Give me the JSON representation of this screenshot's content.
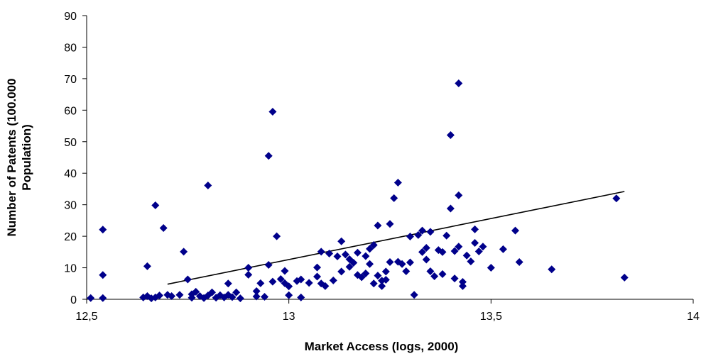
{
  "chart_data": {
    "type": "scatter",
    "xlabel": "Market Access (logs, 2000)",
    "ylabel_lines": [
      "Number of Patents (100.000",
      "Population)"
    ],
    "xlim": [
      12.5,
      14
    ],
    "ylim": [
      0,
      90
    ],
    "x_ticks": [
      12.5,
      13,
      13.5,
      14
    ],
    "x_tick_labels": [
      "12,5",
      "13",
      "13,5",
      "14"
    ],
    "y_ticks": [
      0,
      10,
      20,
      30,
      40,
      50,
      60,
      70,
      80,
      90
    ],
    "y_tick_labels": [
      "0",
      "10",
      "20",
      "30",
      "40",
      "50",
      "60",
      "70",
      "80",
      "90"
    ],
    "grid": false,
    "marker_color": "#00008B",
    "trendline": {
      "x": [
        12.7,
        13.83
      ],
      "y": [
        4.8,
        34.2
      ]
    },
    "points": [
      [
        12.51,
        0.4
      ],
      [
        12.54,
        22.1
      ],
      [
        12.54,
        7.7
      ],
      [
        12.54,
        0.4
      ],
      [
        12.64,
        0.6
      ],
      [
        12.65,
        1.0
      ],
      [
        12.65,
        10.5
      ],
      [
        12.66,
        0.3
      ],
      [
        12.67,
        0.6
      ],
      [
        12.67,
        29.8
      ],
      [
        12.68,
        1.2
      ],
      [
        12.69,
        22.6
      ],
      [
        12.7,
        1.4
      ],
      [
        12.71,
        1.0
      ],
      [
        12.73,
        1.4
      ],
      [
        12.74,
        15.1
      ],
      [
        12.75,
        6.3
      ],
      [
        12.76,
        0.5
      ],
      [
        12.76,
        1.6
      ],
      [
        12.77,
        2.4
      ],
      [
        12.78,
        1.0
      ],
      [
        12.79,
        0.4
      ],
      [
        12.8,
        36.1
      ],
      [
        12.8,
        1.2
      ],
      [
        12.81,
        2.2
      ],
      [
        12.82,
        0.5
      ],
      [
        12.83,
        1.3
      ],
      [
        12.84,
        0.6
      ],
      [
        12.85,
        1.4
      ],
      [
        12.85,
        5.0
      ],
      [
        12.86,
        0.7
      ],
      [
        12.87,
        2.2
      ],
      [
        12.88,
        0.3
      ],
      [
        12.9,
        7.8
      ],
      [
        12.9,
        10.0
      ],
      [
        12.92,
        0.9
      ],
      [
        12.92,
        2.6
      ],
      [
        12.93,
        5.1
      ],
      [
        12.94,
        0.8
      ],
      [
        12.95,
        10.9
      ],
      [
        12.95,
        45.5
      ],
      [
        12.96,
        59.5
      ],
      [
        12.96,
        5.6
      ],
      [
        12.97,
        20.0
      ],
      [
        12.98,
        6.4
      ],
      [
        12.99,
        5.1
      ],
      [
        12.99,
        9.0
      ],
      [
        13.0,
        4.1
      ],
      [
        13.0,
        1.3
      ],
      [
        13.02,
        5.8
      ],
      [
        13.03,
        6.3
      ],
      [
        13.03,
        0.6
      ],
      [
        13.05,
        5.2
      ],
      [
        13.07,
        7.2
      ],
      [
        13.07,
        10.1
      ],
      [
        13.08,
        15.1
      ],
      [
        13.08,
        5.0
      ],
      [
        13.09,
        4.2
      ],
      [
        13.1,
        14.5
      ],
      [
        13.11,
        6.0
      ],
      [
        13.12,
        13.6
      ],
      [
        13.13,
        18.4
      ],
      [
        13.13,
        8.8
      ],
      [
        13.14,
        14.2
      ],
      [
        13.15,
        10.3
      ],
      [
        13.15,
        12.7
      ],
      [
        13.16,
        11.6
      ],
      [
        13.17,
        14.8
      ],
      [
        13.17,
        7.7
      ],
      [
        13.18,
        7.0
      ],
      [
        13.19,
        8.2
      ],
      [
        13.19,
        13.7
      ],
      [
        13.2,
        16.0
      ],
      [
        13.2,
        11.2
      ],
      [
        13.21,
        5.0
      ],
      [
        13.21,
        17.2
      ],
      [
        13.22,
        23.4
      ],
      [
        13.22,
        7.5
      ],
      [
        13.23,
        5.9
      ],
      [
        13.23,
        4.2
      ],
      [
        13.24,
        8.8
      ],
      [
        13.24,
        6.2
      ],
      [
        13.25,
        23.9
      ],
      [
        13.25,
        11.8
      ],
      [
        13.26,
        32.1
      ],
      [
        13.27,
        37.0
      ],
      [
        13.27,
        11.9
      ],
      [
        13.28,
        11.2
      ],
      [
        13.29,
        8.9
      ],
      [
        13.3,
        11.7
      ],
      [
        13.3,
        19.9
      ],
      [
        13.31,
        1.4
      ],
      [
        13.32,
        20.4
      ],
      [
        13.33,
        21.8
      ],
      [
        13.33,
        15.0
      ],
      [
        13.34,
        12.6
      ],
      [
        13.34,
        16.3
      ],
      [
        13.35,
        8.9
      ],
      [
        13.35,
        21.4
      ],
      [
        13.36,
        7.3
      ],
      [
        13.37,
        15.6
      ],
      [
        13.38,
        8.0
      ],
      [
        13.38,
        15.0
      ],
      [
        13.39,
        20.2
      ],
      [
        13.4,
        52.1
      ],
      [
        13.4,
        28.8
      ],
      [
        13.41,
        6.6
      ],
      [
        13.41,
        15.3
      ],
      [
        13.42,
        33.0
      ],
      [
        13.42,
        68.5
      ],
      [
        13.42,
        16.7
      ],
      [
        13.43,
        5.5
      ],
      [
        13.43,
        4.2
      ],
      [
        13.44,
        13.9
      ],
      [
        13.45,
        12.0
      ],
      [
        13.46,
        17.9
      ],
      [
        13.46,
        22.2
      ],
      [
        13.47,
        15.2
      ],
      [
        13.48,
        16.7
      ],
      [
        13.5,
        10.0
      ],
      [
        13.53,
        15.9
      ],
      [
        13.56,
        21.8
      ],
      [
        13.57,
        11.8
      ],
      [
        13.65,
        9.5
      ],
      [
        13.81,
        32.0
      ],
      [
        13.83,
        6.9
      ]
    ]
  }
}
